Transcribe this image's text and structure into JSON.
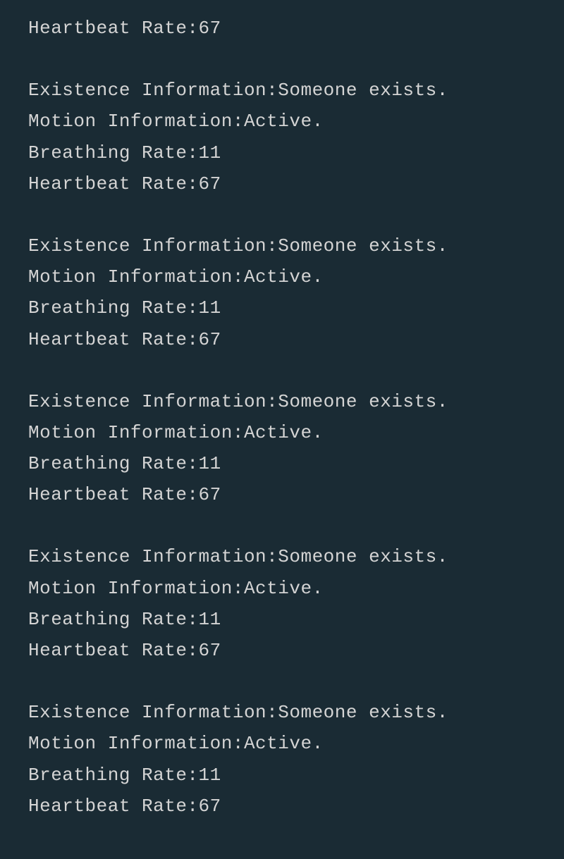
{
  "terminal": {
    "background_color": "#1a2b34",
    "text_color": "#d4d4d4",
    "font_family": "SimSun, NSimSun, Courier New, monospace",
    "font_size": 26,
    "labels": {
      "existence": "Existence Information:",
      "motion": "Motion Information:",
      "breathing": "Breathing Rate:",
      "heartbeat": "Heartbeat Rate:"
    },
    "leading_block": {
      "heartbeat_value": "67"
    },
    "blocks": [
      {
        "existence_value": "Someone exists.",
        "motion_value": "Active.",
        "breathing_value": "11",
        "heartbeat_value": "67"
      },
      {
        "existence_value": "Someone exists.",
        "motion_value": "Active.",
        "breathing_value": "11",
        "heartbeat_value": "67"
      },
      {
        "existence_value": "Someone exists.",
        "motion_value": "Active.",
        "breathing_value": "11",
        "heartbeat_value": "67"
      },
      {
        "existence_value": "Someone exists.",
        "motion_value": "Active.",
        "breathing_value": "11",
        "heartbeat_value": "67"
      },
      {
        "existence_value": "Someone exists.",
        "motion_value": "Active.",
        "breathing_value": "11",
        "heartbeat_value": "67"
      }
    ]
  }
}
